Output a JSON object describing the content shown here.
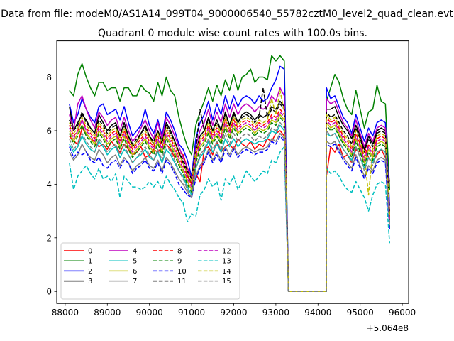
{
  "chart_data": {
    "type": "line",
    "suptitle": "Data from file: modeM0/AS1A14_099T04_9000006540_55782cztM0_level2_quad_clean.evt",
    "title": "Quadrant 0 module wise count rates with 100.0s bins.",
    "xlabel": "",
    "ylabel": "",
    "x_offset_label": "+5.064e8",
    "x_offset": 506400000,
    "xlim": [
      87800,
      96150
    ],
    "ylim": [
      -0.45,
      9.35
    ],
    "xticks": [
      88000,
      89000,
      90000,
      91000,
      92000,
      93000,
      94000,
      95000,
      96000
    ],
    "xtick_labels": [
      "88000",
      "89000",
      "90000",
      "91000",
      "92000",
      "93000",
      "94000",
      "95000",
      "96000"
    ],
    "yticks": [
      0,
      2,
      4,
      6,
      8
    ],
    "ytick_labels": [
      "0",
      "2",
      "4",
      "6",
      "8"
    ],
    "grid": false,
    "legend_position": "lower-left",
    "legend_columns": 4,
    "x_segments": [
      {
        "start": 88100,
        "end": 93200,
        "step": 100
      },
      {
        "start": 93300,
        "end": 94200,
        "step": 100
      },
      {
        "start": 94200,
        "end": 95700,
        "step": 100
      }
    ],
    "series": [
      {
        "name": "0",
        "color": "#ff0000",
        "dash": "solid",
        "segA": [
          5.8,
          5.6,
          5.5,
          6.1,
          5.9,
          5.7,
          5.6,
          5.4,
          5.5,
          5.3,
          5.6,
          5.4,
          5.2,
          5.5,
          5.3,
          5.1,
          5.2,
          5.4,
          5.0,
          5.1,
          5.3,
          5.2,
          5.4,
          5.5,
          5.3,
          5.0,
          5.2,
          5.1,
          4.6,
          4.3,
          4.4,
          4.1,
          5.3,
          5.4,
          5.1,
          5.6,
          5.2,
          5.4,
          5.5,
          5.3,
          5.7,
          5.5,
          5.4,
          5.6,
          5.3,
          5.5,
          5.4,
          5.7,
          5.6,
          5.9,
          6.0,
          5.8
        ],
        "segC": [
          4.3,
          5.4,
          5.2,
          5.5,
          5.0,
          5.1,
          4.8,
          5.3,
          5.2,
          5.4,
          5.0,
          4.8,
          5.1,
          5.3,
          5.0,
          4.1
        ]
      },
      {
        "name": "1",
        "color": "#008000",
        "dash": "solid",
        "segA": [
          7.5,
          7.3,
          8.1,
          8.5,
          8.0,
          7.6,
          7.3,
          7.8,
          7.8,
          7.5,
          7.6,
          7.6,
          7.1,
          7.6,
          7.6,
          7.3,
          7.3,
          7.7,
          7.5,
          7.4,
          7.1,
          7.8,
          7.3,
          8.0,
          7.5,
          7.3,
          6.5,
          5.9,
          5.4,
          5.1,
          6.2,
          6.7,
          7.1,
          7.6,
          7.1,
          7.7,
          7.3,
          7.9,
          7.5,
          8.1,
          7.5,
          8.0,
          8.1,
          8.3,
          7.8,
          8.0,
          8.0,
          7.9,
          8.8,
          8.6,
          8.8,
          8.6
        ],
        "segC": [
          7.1,
          7.6,
          8.1,
          7.8,
          7.2,
          6.8,
          6.6,
          7.5,
          6.8,
          6.1,
          6.7,
          6.8,
          7.7,
          7.1,
          7.0,
          3.8
        ]
      },
      {
        "name": "2",
        "color": "#0000ff",
        "dash": "solid",
        "segA": [
          7.0,
          6.3,
          6.6,
          7.2,
          6.8,
          6.5,
          6.3,
          6.9,
          7.0,
          6.6,
          6.7,
          6.8,
          6.4,
          6.9,
          6.3,
          5.8,
          6.0,
          6.2,
          6.8,
          6.2,
          5.9,
          6.4,
          5.8,
          6.7,
          6.4,
          6.0,
          5.5,
          5.3,
          4.9,
          4.3,
          5.7,
          6.3,
          6.6,
          7.1,
          6.4,
          7.0,
          6.6,
          7.3,
          6.8,
          7.3,
          6.9,
          7.2,
          7.3,
          7.2,
          7.0,
          7.3,
          7.1,
          7.2,
          7.6,
          7.9,
          8.4,
          8.3
        ],
        "segC": [
          7.6,
          7.2,
          7.3,
          6.9,
          6.5,
          6.3,
          5.9,
          6.6,
          6.1,
          5.6,
          6.1,
          5.8,
          6.3,
          6.4,
          6.3,
          3.2
        ]
      },
      {
        "name": "3",
        "color": "#000000",
        "dash": "solid",
        "segA": [
          6.9,
          6.0,
          6.3,
          6.6,
          6.4,
          6.1,
          5.9,
          6.6,
          6.3,
          6.0,
          6.2,
          6.3,
          5.8,
          6.3,
          5.8,
          5.4,
          5.6,
          5.9,
          6.2,
          5.8,
          5.5,
          6.0,
          5.5,
          6.3,
          6.0,
          5.6,
          5.2,
          4.8,
          4.4,
          4.0,
          5.2,
          5.8,
          6.0,
          6.5,
          6.0,
          6.4,
          6.0,
          6.7,
          6.2,
          6.7,
          6.3,
          6.6,
          6.7,
          6.6,
          6.4,
          6.6,
          6.5,
          6.6,
          6.9,
          6.8,
          7.1,
          6.9
        ],
        "segC": [
          6.8,
          6.8,
          6.9,
          6.5,
          6.2,
          6.0,
          5.7,
          6.2,
          5.8,
          5.3,
          5.8,
          5.5,
          6.0,
          6.1,
          6.0,
          2.9
        ]
      },
      {
        "name": "4",
        "color": "#bf00bf",
        "dash": "solid",
        "segA": [
          6.6,
          6.0,
          7.0,
          7.3,
          6.8,
          6.4,
          6.1,
          6.7,
          6.5,
          6.2,
          6.4,
          6.5,
          6.0,
          6.5,
          6.0,
          5.6,
          5.8,
          6.1,
          6.4,
          6.0,
          5.7,
          6.3,
          5.7,
          6.5,
          6.2,
          5.8,
          5.4,
          5.0,
          4.6,
          4.2,
          5.4,
          6.0,
          6.3,
          6.8,
          6.2,
          6.7,
          6.3,
          7.0,
          6.5,
          7.0,
          6.6,
          6.9,
          7.0,
          6.9,
          6.7,
          6.9,
          6.8,
          6.9,
          7.3,
          7.1,
          7.6,
          7.3
        ],
        "segC": [
          7.2,
          7.0,
          7.1,
          6.7,
          6.3,
          6.1,
          5.8,
          6.4,
          5.9,
          5.4,
          5.9,
          5.6,
          6.1,
          6.2,
          6.1,
          3.0
        ]
      },
      {
        "name": "5",
        "color": "#00bfbf",
        "dash": "solid",
        "segA": [
          5.5,
          5.2,
          5.4,
          5.8,
          5.5,
          5.3,
          5.2,
          5.6,
          5.4,
          5.1,
          5.3,
          5.4,
          5.0,
          5.3,
          5.1,
          4.8,
          5.0,
          5.1,
          5.3,
          5.0,
          4.9,
          5.2,
          4.8,
          5.3,
          5.1,
          4.8,
          4.5,
          4.3,
          3.9,
          3.6,
          4.6,
          5.0,
          5.2,
          5.6,
          5.2,
          5.5,
          5.2,
          5.7,
          5.4,
          5.7,
          5.4,
          5.6,
          5.7,
          5.6,
          5.5,
          5.6,
          5.6,
          5.7,
          6.0,
          5.9,
          6.2,
          6.0
        ],
        "segC": [
          5.9,
          5.8,
          5.9,
          5.6,
          5.3,
          5.1,
          4.9,
          5.4,
          5.0,
          4.6,
          5.0,
          4.8,
          5.2,
          5.3,
          5.2,
          2.6
        ]
      },
      {
        "name": "6",
        "color": "#bfbf00",
        "dash": "solid",
        "segA": [
          6.0,
          5.6,
          5.9,
          6.2,
          5.9,
          5.7,
          5.5,
          6.0,
          5.8,
          5.5,
          5.7,
          5.8,
          5.4,
          5.8,
          5.4,
          5.1,
          5.3,
          5.5,
          5.7,
          5.4,
          5.2,
          5.6,
          5.2,
          5.8,
          5.5,
          5.2,
          4.8,
          4.5,
          4.1,
          3.8,
          4.9,
          5.4,
          5.6,
          6.0,
          5.6,
          5.9,
          5.6,
          6.2,
          5.8,
          6.2,
          5.9,
          6.1,
          6.2,
          6.1,
          5.9,
          6.1,
          6.0,
          6.1,
          6.4,
          6.3,
          6.6,
          6.4
        ],
        "segC": [
          6.3,
          6.1,
          6.2,
          5.9,
          5.6,
          5.4,
          5.1,
          5.7,
          5.3,
          4.8,
          5.3,
          5.0,
          5.5,
          5.6,
          5.5,
          2.7
        ]
      },
      {
        "name": "7",
        "color": "#808080",
        "dash": "solid",
        "segA": [
          5.2,
          4.9,
          5.1,
          5.5,
          5.2,
          5.0,
          4.9,
          5.3,
          5.1,
          4.8,
          5.0,
          5.1,
          4.7,
          5.0,
          4.8,
          4.5,
          4.7,
          4.8,
          5.0,
          4.7,
          4.6,
          4.9,
          4.5,
          5.0,
          4.8,
          4.5,
          4.2,
          4.0,
          3.7,
          3.5,
          4.3,
          4.7,
          4.9,
          5.3,
          4.9,
          5.2,
          4.9,
          5.4,
          5.1,
          5.4,
          5.1,
          5.3,
          5.4,
          5.3,
          5.2,
          5.3,
          5.3,
          5.4,
          5.7,
          5.6,
          5.9,
          5.7
        ],
        "segC": [
          5.6,
          5.5,
          5.6,
          5.3,
          5.0,
          4.8,
          4.6,
          5.1,
          4.7,
          4.3,
          4.7,
          4.5,
          4.9,
          5.0,
          4.9,
          2.4
        ]
      },
      {
        "name": "8",
        "color": "#ff0000",
        "dash": "dashed",
        "segA": [
          6.2,
          5.8,
          6.0,
          6.4,
          6.1,
          5.9,
          5.7,
          6.2,
          6.0,
          5.7,
          5.9,
          6.0,
          5.6,
          6.0,
          5.6,
          5.3,
          5.5,
          5.7,
          5.9,
          5.6,
          5.4,
          5.8,
          5.4,
          6.0,
          5.7,
          5.4,
          5.0,
          4.7,
          4.3,
          4.0,
          5.1,
          5.6,
          5.8,
          6.2,
          5.8,
          6.1,
          5.8,
          6.4,
          6.0,
          6.4,
          6.1,
          6.3,
          6.4,
          6.3,
          6.1,
          6.3,
          6.2,
          6.3,
          6.6,
          6.5,
          6.8,
          6.6
        ],
        "segC": [
          6.5,
          6.3,
          6.4,
          6.1,
          5.8,
          5.6,
          5.3,
          5.9,
          5.5,
          5.0,
          5.5,
          5.2,
          5.7,
          5.8,
          5.7,
          2.8
        ]
      },
      {
        "name": "9",
        "color": "#008000",
        "dash": "dashed",
        "segA": [
          5.9,
          5.5,
          5.8,
          6.2,
          5.8,
          5.6,
          5.4,
          5.9,
          5.7,
          5.4,
          5.6,
          5.7,
          5.3,
          5.7,
          5.3,
          5.0,
          5.2,
          5.4,
          5.6,
          5.3,
          5.1,
          5.5,
          5.1,
          5.7,
          5.4,
          5.1,
          4.7,
          4.4,
          4.0,
          3.7,
          4.8,
          5.3,
          5.5,
          5.9,
          5.5,
          5.8,
          5.5,
          6.1,
          5.7,
          6.1,
          5.8,
          6.0,
          6.1,
          6.0,
          5.8,
          6.0,
          5.9,
          6.0,
          6.3,
          6.2,
          6.5,
          6.3
        ],
        "segC": [
          6.2,
          6.0,
          6.1,
          5.8,
          5.5,
          5.3,
          5.0,
          5.6,
          5.2,
          4.7,
          5.2,
          4.9,
          5.4,
          5.5,
          5.4,
          2.6
        ]
      },
      {
        "name": "10",
        "color": "#0000ff",
        "dash": "dashed",
        "segA": [
          5.4,
          5.0,
          5.2,
          5.1,
          5.2,
          4.9,
          4.8,
          5.0,
          4.7,
          4.6,
          4.8,
          4.9,
          4.6,
          4.9,
          4.8,
          4.4,
          4.6,
          4.7,
          4.9,
          4.6,
          4.5,
          4.8,
          4.4,
          4.9,
          4.7,
          4.4,
          4.0,
          3.8,
          3.6,
          3.5,
          4.2,
          4.6,
          4.8,
          5.2,
          4.8,
          5.1,
          4.8,
          5.3,
          5.0,
          5.3,
          5.0,
          5.2,
          5.3,
          5.2,
          5.1,
          5.2,
          5.2,
          5.3,
          5.6,
          5.5,
          5.8,
          5.6
        ],
        "segC": [
          5.5,
          5.4,
          5.5,
          5.2,
          4.9,
          4.7,
          4.5,
          5.0,
          4.6,
          4.2,
          4.6,
          4.4,
          4.8,
          4.9,
          4.8,
          2.3
        ]
      },
      {
        "name": "11",
        "color": "#000000",
        "dash": "dashed",
        "segA": [
          6.4,
          6.0,
          6.2,
          6.7,
          6.3,
          6.1,
          5.9,
          6.4,
          6.2,
          5.9,
          6.1,
          6.2,
          5.8,
          6.2,
          5.8,
          5.5,
          5.7,
          5.9,
          6.1,
          5.8,
          5.6,
          6.0,
          5.6,
          6.2,
          5.9,
          5.6,
          5.2,
          4.9,
          4.5,
          4.2,
          5.3,
          6.8,
          6.0,
          6.4,
          6.0,
          6.3,
          6.0,
          6.6,
          6.2,
          6.6,
          6.3,
          6.5,
          6.6,
          6.5,
          6.3,
          6.5,
          7.6,
          6.5,
          6.8,
          6.7,
          7.0,
          6.8
        ],
        "segC": [
          6.7,
          6.5,
          6.6,
          6.3,
          6.0,
          5.8,
          5.5,
          6.1,
          5.7,
          5.2,
          5.7,
          5.4,
          5.9,
          6.0,
          5.9,
          2.9
        ]
      },
      {
        "name": "12",
        "color": "#bf00bf",
        "dash": "dashed",
        "segA": [
          6.1,
          5.7,
          6.0,
          6.4,
          6.0,
          5.8,
          5.6,
          6.1,
          5.9,
          5.6,
          5.8,
          5.9,
          5.5,
          5.9,
          5.5,
          5.2,
          5.4,
          5.6,
          5.8,
          5.5,
          5.3,
          5.7,
          5.3,
          5.9,
          5.6,
          5.3,
          4.9,
          4.6,
          4.2,
          3.9,
          5.0,
          5.5,
          5.7,
          6.1,
          5.7,
          6.0,
          5.7,
          6.3,
          5.9,
          6.3,
          6.0,
          6.2,
          6.3,
          6.2,
          6.0,
          6.2,
          6.1,
          6.2,
          6.5,
          6.4,
          6.7,
          6.5
        ],
        "segC": [
          6.4,
          6.2,
          6.3,
          6.0,
          5.7,
          5.5,
          5.2,
          5.8,
          5.4,
          4.9,
          5.4,
          5.1,
          5.6,
          5.7,
          5.6,
          2.7
        ]
      },
      {
        "name": "13",
        "color": "#00bfbf",
        "dash": "dashed",
        "segA": [
          4.8,
          3.8,
          4.3,
          4.5,
          4.7,
          4.4,
          4.2,
          4.6,
          4.2,
          4.3,
          4.1,
          4.4,
          3.5,
          4.3,
          4.1,
          3.9,
          3.9,
          3.8,
          3.9,
          4.1,
          3.9,
          4.1,
          3.8,
          4.3,
          4.0,
          3.8,
          3.5,
          3.3,
          2.6,
          2.9,
          2.8,
          3.6,
          3.8,
          4.2,
          3.9,
          4.1,
          3.4,
          4.2,
          4.0,
          4.3,
          3.8,
          4.1,
          4.5,
          4.3,
          4.1,
          4.3,
          4.5,
          4.4,
          4.9,
          4.8,
          5.2,
          5.4
        ],
        "segC": [
          4.6,
          4.4,
          4.5,
          4.3,
          4.0,
          3.8,
          3.7,
          4.1,
          3.8,
          3.5,
          3.0,
          3.6,
          4.0,
          4.1,
          4.0,
          1.8
        ]
      },
      {
        "name": "14",
        "color": "#bfbf00",
        "dash": "dashed",
        "segA": [
          6.3,
          5.9,
          6.1,
          6.5,
          6.2,
          6.0,
          5.8,
          6.3,
          6.1,
          5.8,
          6.0,
          6.1,
          5.7,
          6.1,
          5.7,
          5.4,
          5.6,
          5.8,
          6.0,
          5.7,
          5.5,
          5.9,
          5.5,
          6.1,
          5.8,
          5.5,
          5.1,
          4.8,
          4.4,
          4.1,
          5.2,
          5.7,
          5.9,
          6.3,
          5.9,
          6.2,
          5.9,
          6.5,
          6.1,
          6.5,
          6.2,
          6.4,
          6.5,
          6.4,
          6.2,
          6.4,
          6.3,
          6.4,
          7.2,
          6.6,
          7.5,
          6.7
        ],
        "segC": [
          6.6,
          6.4,
          6.5,
          6.2,
          5.9,
          5.7,
          5.4,
          6.0,
          5.6,
          5.1,
          3.6,
          5.3,
          5.8,
          5.9,
          5.8,
          2.8
        ]
      },
      {
        "name": "15",
        "color": "#808080",
        "dash": "dashed",
        "segA": [
          5.7,
          5.3,
          5.5,
          5.9,
          5.6,
          5.4,
          5.2,
          5.7,
          5.5,
          5.2,
          5.4,
          5.5,
          5.1,
          5.5,
          5.1,
          4.8,
          5.0,
          5.2,
          5.4,
          5.1,
          4.9,
          5.3,
          4.9,
          5.5,
          5.2,
          4.9,
          4.5,
          4.2,
          3.8,
          3.5,
          4.6,
          5.1,
          5.3,
          5.7,
          5.3,
          5.6,
          5.3,
          5.9,
          5.5,
          5.9,
          5.6,
          5.8,
          5.9,
          5.8,
          5.6,
          5.8,
          5.7,
          5.8,
          6.1,
          6.0,
          6.3,
          6.1
        ],
        "segC": [
          6.0,
          5.8,
          5.9,
          5.6,
          5.3,
          5.1,
          4.8,
          5.4,
          5.0,
          4.5,
          5.0,
          4.7,
          5.2,
          5.3,
          5.2,
          2.5
        ]
      }
    ]
  }
}
